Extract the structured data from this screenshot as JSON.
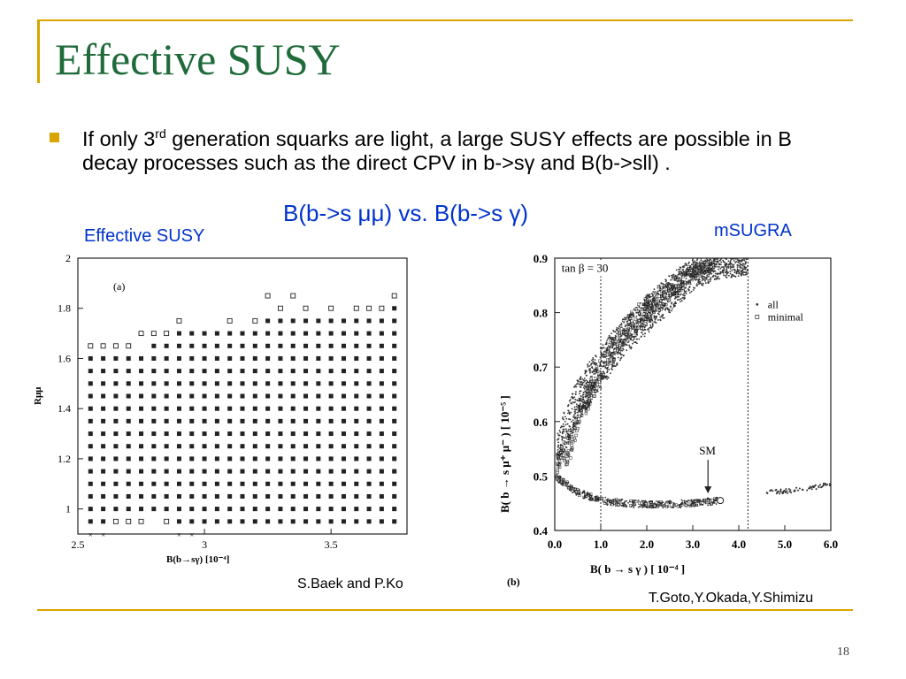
{
  "slide": {
    "title": "Effective SUSY",
    "bullet_before": "If only 3",
    "bullet_sup": "rd",
    "bullet_after": " generation squarks are light, a large SUSY effects are possible in B decay processes such as the direct CPV in b->sγ and  B(b->sll) .",
    "subtitle": "B(b->s μμ) vs. B(b->s γ)",
    "left_label": "Effective SUSY",
    "right_label": "mSUGRA",
    "left_credit": "S.Baek and P.Ko",
    "right_credit": "T.Goto,Y.Okada,Y.Shimizu",
    "page_number": "18",
    "accent_color": "#d9a400",
    "title_color": "#1f6b3a",
    "highlight_color": "#0033cc"
  },
  "chart_data": [
    {
      "type": "scatter",
      "panel_label": "(a)",
      "xlabel": "B(b→sγ) [10⁻⁴]",
      "ylabel": "Rμμ",
      "xlim": [
        2.5,
        3.8
      ],
      "ylim": [
        0.9,
        2.0
      ],
      "x_ticks": [
        "2.5",
        "3",
        "3.5"
      ],
      "y_ticks": [
        "1",
        "1.2",
        "1.4",
        "1.6",
        "1.8",
        "2"
      ],
      "grid": false,
      "series": [
        {
          "marker": "filled-square",
          "columns": [
            {
              "x": 2.55,
              "ymin": 0.95,
              "ymax": 1.6
            },
            {
              "x": 2.6,
              "ymin": 0.95,
              "ymax": 1.6
            },
            {
              "x": 2.65,
              "ymin": 1.0,
              "ymax": 1.6
            },
            {
              "x": 2.7,
              "ymin": 1.0,
              "ymax": 1.6
            },
            {
              "x": 2.75,
              "ymin": 1.0,
              "ymax": 1.6
            },
            {
              "x": 2.8,
              "ymin": 1.0,
              "ymax": 1.65
            },
            {
              "x": 2.85,
              "ymin": 1.0,
              "ymax": 1.65
            },
            {
              "x": 2.9,
              "ymin": 0.95,
              "ymax": 1.7
            },
            {
              "x": 2.95,
              "ymin": 0.95,
              "ymax": 1.7
            },
            {
              "x": 3.0,
              "ymin": 0.95,
              "ymax": 1.7
            },
            {
              "x": 3.05,
              "ymin": 0.95,
              "ymax": 1.7
            },
            {
              "x": 3.1,
              "ymin": 0.95,
              "ymax": 1.7
            },
            {
              "x": 3.15,
              "ymin": 0.95,
              "ymax": 1.7
            },
            {
              "x": 3.2,
              "ymin": 0.95,
              "ymax": 1.7
            },
            {
              "x": 3.25,
              "ymin": 0.95,
              "ymax": 1.75
            },
            {
              "x": 3.3,
              "ymin": 0.95,
              "ymax": 1.75
            },
            {
              "x": 3.35,
              "ymin": 0.95,
              "ymax": 1.75
            },
            {
              "x": 3.4,
              "ymin": 0.95,
              "ymax": 1.75
            },
            {
              "x": 3.45,
              "ymin": 0.95,
              "ymax": 1.75
            },
            {
              "x": 3.5,
              "ymin": 0.95,
              "ymax": 1.75
            },
            {
              "x": 3.55,
              "ymin": 0.95,
              "ymax": 1.75
            },
            {
              "x": 3.6,
              "ymin": 0.95,
              "ymax": 1.75
            },
            {
              "x": 3.65,
              "ymin": 0.95,
              "ymax": 1.75
            },
            {
              "x": 3.7,
              "ymin": 0.95,
              "ymax": 1.75
            },
            {
              "x": 3.75,
              "ymin": 0.95,
              "ymax": 1.8
            }
          ]
        },
        {
          "marker": "open-square",
          "points": [
            [
              2.55,
              1.65
            ],
            [
              2.6,
              1.65
            ],
            [
              2.65,
              1.65
            ],
            [
              2.7,
              1.65
            ],
            [
              2.75,
              1.7
            ],
            [
              2.8,
              1.7
            ],
            [
              2.85,
              1.7
            ],
            [
              2.9,
              1.75
            ],
            [
              3.1,
              1.75
            ],
            [
              3.2,
              1.75
            ],
            [
              3.25,
              1.85
            ],
            [
              3.3,
              1.8
            ],
            [
              3.35,
              1.85
            ],
            [
              3.4,
              1.8
            ],
            [
              3.5,
              1.8
            ],
            [
              3.6,
              1.8
            ],
            [
              3.65,
              1.8
            ],
            [
              3.7,
              1.8
            ],
            [
              3.75,
              1.85
            ],
            [
              2.65,
              0.95
            ],
            [
              2.7,
              0.95
            ],
            [
              2.75,
              0.95
            ],
            [
              2.85,
              0.95
            ]
          ]
        },
        {
          "marker": "cross",
          "points": [
            [
              2.55,
              0.9
            ],
            [
              2.6,
              0.9
            ],
            [
              2.9,
              0.9
            ],
            [
              2.95,
              0.9
            ]
          ]
        }
      ]
    },
    {
      "type": "scatter",
      "panel_label": "(b)",
      "annotation": "tan β = 30",
      "xlabel": "B( b → s γ )  [ 10⁻⁴ ]",
      "ylabel": "B( b → s μ⁺ μ⁻ )  [ 10⁻⁵ ]",
      "xlim": [
        0.0,
        6.0
      ],
      "ylim": [
        0.4,
        0.9
      ],
      "x_ticks": [
        "0.0",
        "1.0",
        "2.0",
        "3.0",
        "4.0",
        "5.0",
        "6.0"
      ],
      "y_ticks": [
        "0.4",
        "0.5",
        "0.6",
        "0.7",
        "0.8",
        "0.9"
      ],
      "grid": false,
      "vertical_lines": [
        1.0,
        4.2
      ],
      "sm_label": "SM",
      "sm_point": [
        3.6,
        0.455
      ],
      "legend": [
        "all",
        "minimal"
      ],
      "legend_position": "right",
      "series": [
        {
          "name": "all",
          "band_upper": [
            [
              0.0,
              0.56
            ],
            [
              0.2,
              0.62
            ],
            [
              0.5,
              0.68
            ],
            [
              1.0,
              0.74
            ],
            [
              1.5,
              0.79
            ],
            [
              2.0,
              0.83
            ],
            [
              2.5,
              0.87
            ],
            [
              3.0,
              0.9
            ],
            [
              4.2,
              0.9
            ]
          ],
          "band_lower": [
            [
              0.0,
              0.5
            ],
            [
              0.2,
              0.54
            ],
            [
              0.5,
              0.6
            ],
            [
              1.0,
              0.66
            ],
            [
              1.5,
              0.72
            ],
            [
              2.0,
              0.76
            ],
            [
              2.5,
              0.8
            ],
            [
              3.0,
              0.84
            ],
            [
              3.5,
              0.86
            ],
            [
              4.2,
              0.87
            ]
          ],
          "lower_branch": [
            [
              0.0,
              0.5
            ],
            [
              0.5,
              0.47
            ],
            [
              1.0,
              0.455
            ],
            [
              1.5,
              0.45
            ],
            [
              2.0,
              0.448
            ],
            [
              2.5,
              0.448
            ],
            [
              3.0,
              0.45
            ],
            [
              3.6,
              0.455
            ]
          ],
          "right_branch": [
            [
              4.6,
              0.47
            ],
            [
              5.0,
              0.472
            ],
            [
              5.5,
              0.477
            ],
            [
              6.0,
              0.485
            ]
          ]
        },
        {
          "name": "minimal",
          "band_upper": [
            [
              0.0,
              0.53
            ],
            [
              0.3,
              0.58
            ],
            [
              0.5,
              0.63
            ],
            [
              1.0,
              0.72
            ],
            [
              1.5,
              0.79
            ],
            [
              2.0,
              0.83
            ],
            [
              2.5,
              0.86
            ],
            [
              3.0,
              0.89
            ],
            [
              3.5,
              0.9
            ]
          ],
          "band_lower": [
            [
              0.0,
              0.5
            ],
            [
              0.3,
              0.52
            ],
            [
              0.5,
              0.58
            ],
            [
              1.0,
              0.67
            ],
            [
              1.5,
              0.74
            ],
            [
              2.0,
              0.78
            ],
            [
              2.5,
              0.82
            ],
            [
              3.0,
              0.86
            ],
            [
              3.5,
              0.88
            ]
          ]
        }
      ]
    }
  ]
}
